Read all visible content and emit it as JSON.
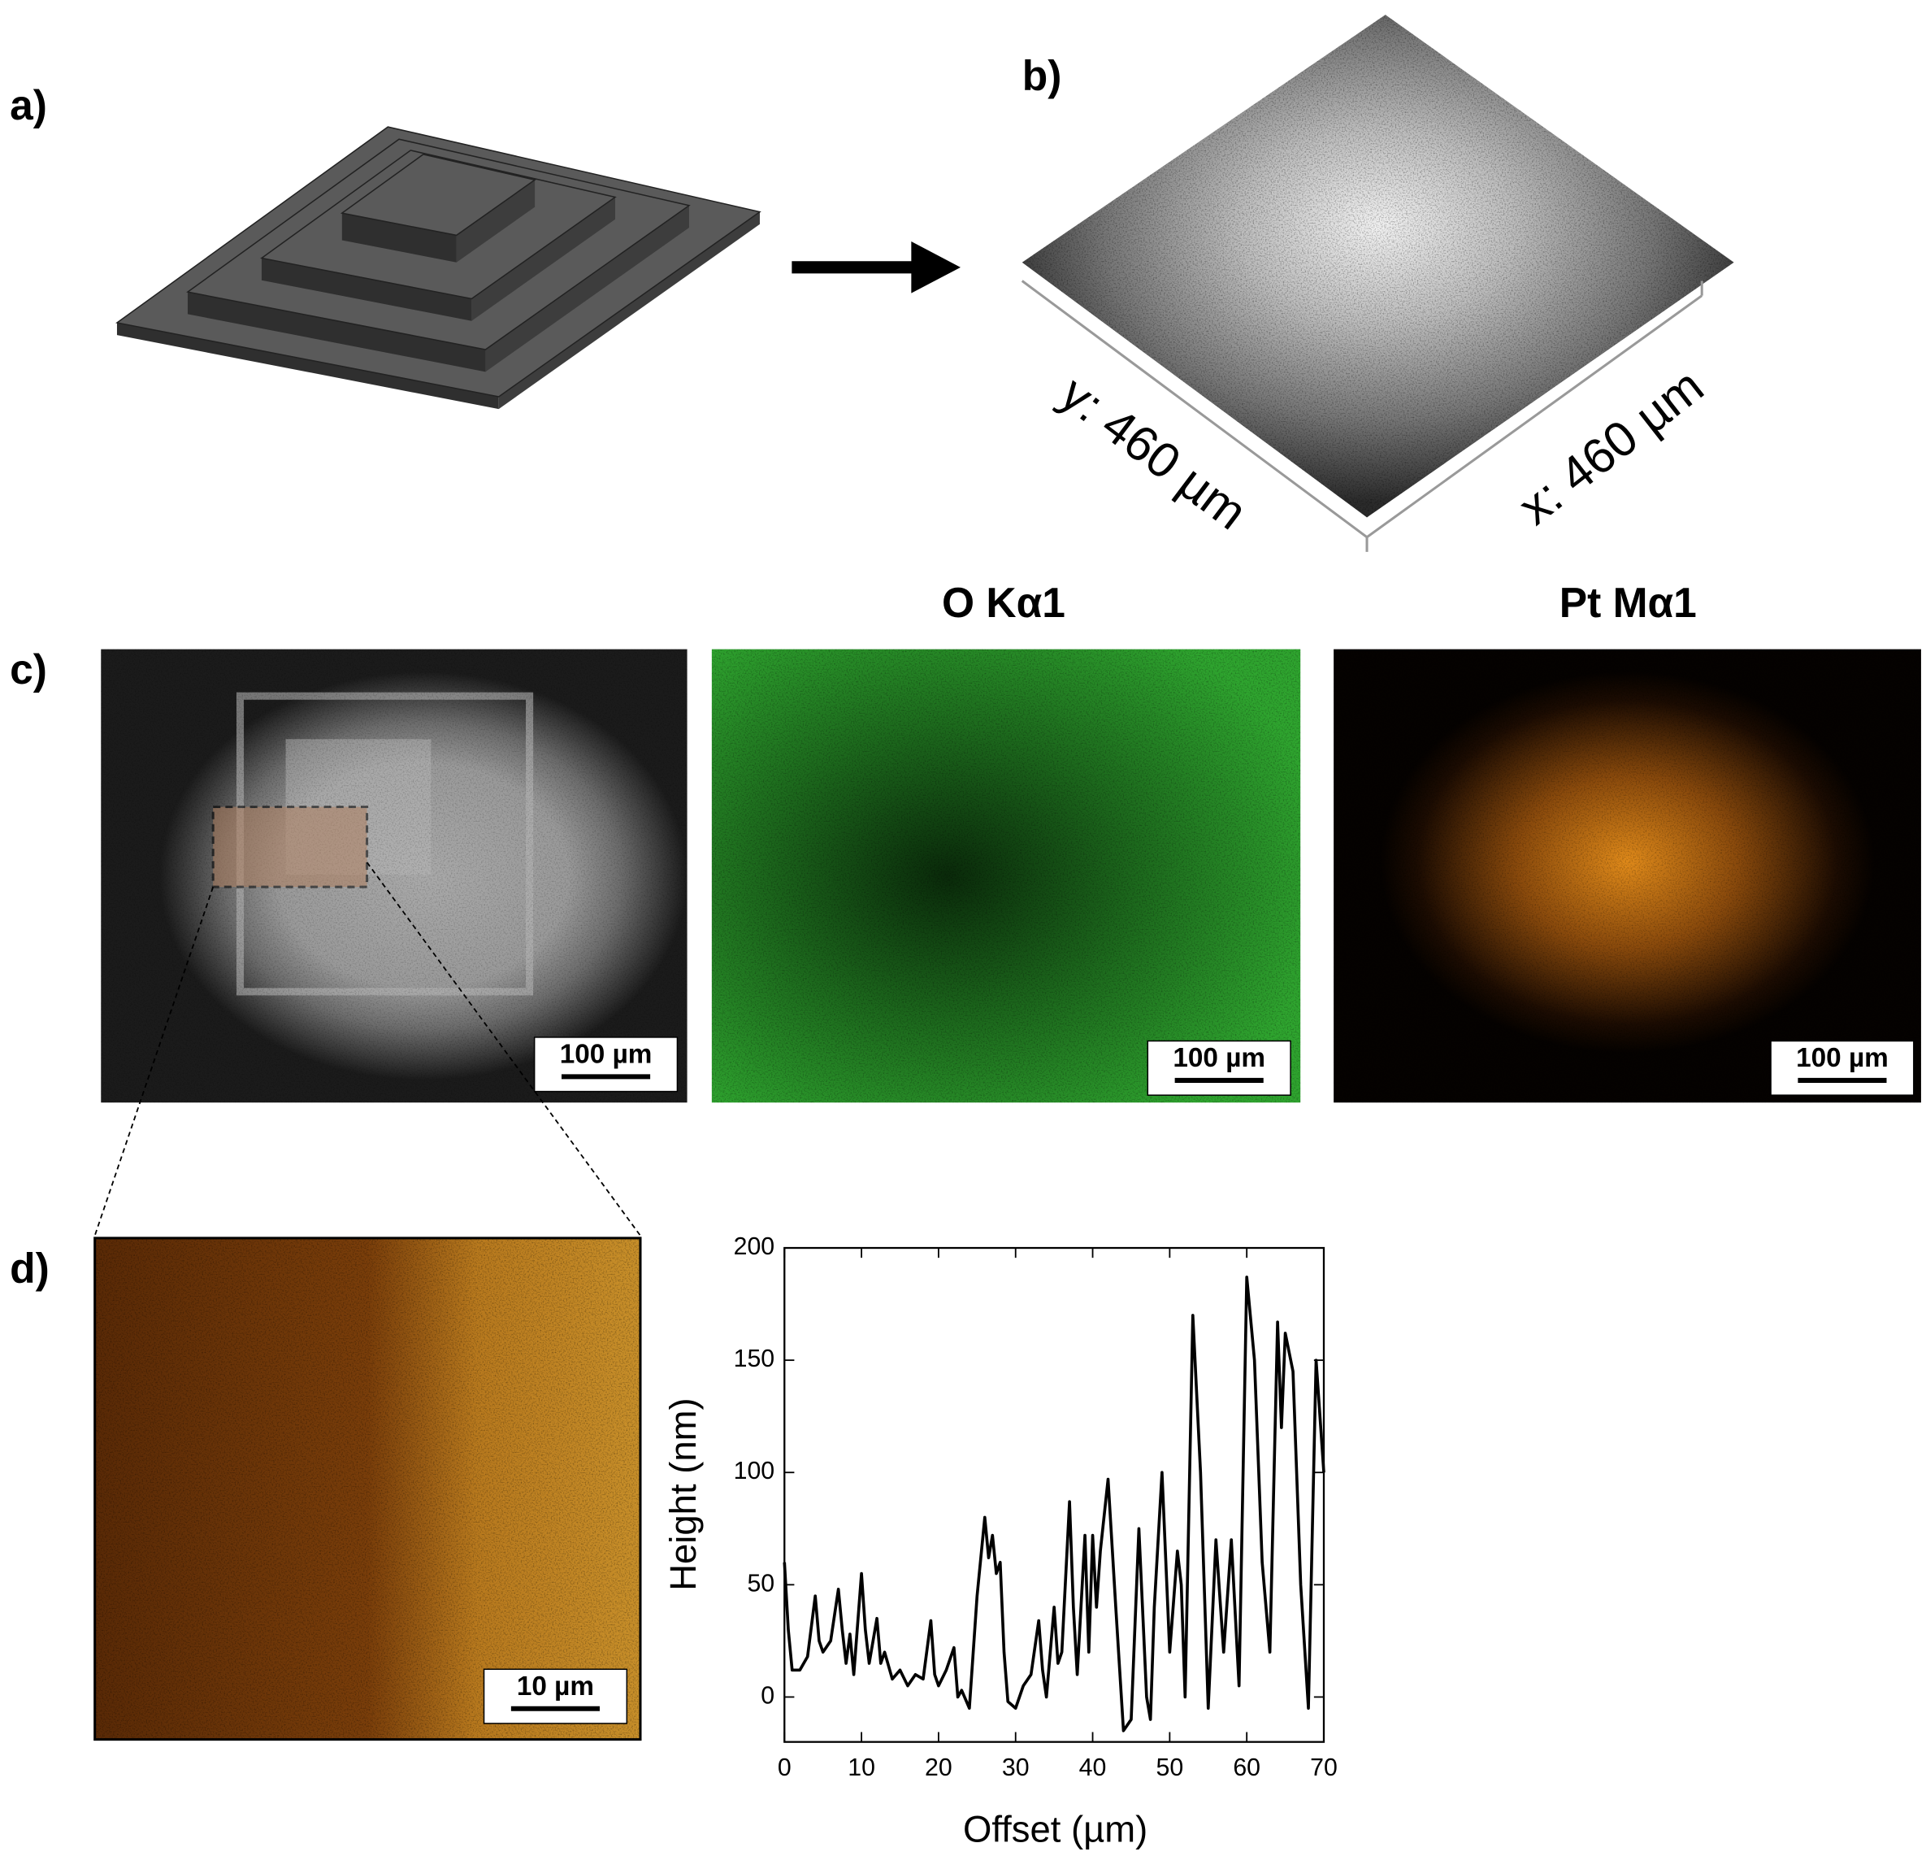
{
  "figure": {
    "labels": [
      "a)",
      "b)",
      "c)",
      "d)"
    ],
    "axis_b": [
      "y: 460 µm",
      "x: 460 µm"
    ],
    "map_titles": [
      "O Kα1",
      "Pt Mα1"
    ],
    "scale_bars": [
      "100 µm",
      "100 µm",
      "100 µm",
      "10 µm"
    ]
  },
  "chart_data": {
    "type": "line",
    "xlabel": "Offset (µm)",
    "ylabel": "Height (nm)",
    "color": "#000000",
    "x": [
      0,
      0.5,
      1,
      2,
      3,
      4,
      4.5,
      5,
      6,
      7,
      7.5,
      8,
      8.5,
      9,
      10,
      10.5,
      11,
      12,
      12.5,
      13,
      14,
      15,
      16,
      17,
      18,
      19,
      19.5,
      20,
      21,
      22,
      22.5,
      23,
      24,
      25,
      26,
      26.5,
      27,
      27.5,
      28,
      28.5,
      29,
      30,
      31,
      32,
      33,
      33.5,
      34,
      35,
      35.5,
      36,
      37,
      37.5,
      38,
      39,
      39.5,
      40,
      40.5,
      41,
      42,
      43,
      44,
      45,
      46,
      47,
      47.5,
      48,
      49,
      50,
      51,
      51.5,
      52,
      53,
      54,
      55,
      56,
      57,
      58,
      59,
      60,
      61,
      62,
      63,
      64,
      64.5,
      65,
      66,
      67,
      68,
      69,
      70
    ],
    "values": [
      60,
      30,
      12,
      12,
      18,
      45,
      25,
      20,
      25,
      48,
      30,
      15,
      28,
      10,
      55,
      30,
      15,
      35,
      15,
      20,
      8,
      12,
      5,
      10,
      8,
      34,
      10,
      5,
      12,
      22,
      0,
      3,
      -5,
      45,
      80,
      62,
      72,
      55,
      60,
      20,
      -2,
      -5,
      5,
      10,
      34,
      12,
      0,
      40,
      15,
      20,
      87,
      40,
      10,
      72,
      20,
      72,
      40,
      65,
      97,
      40,
      -15,
      -10,
      75,
      0,
      -10,
      40,
      100,
      20,
      65,
      50,
      0,
      170,
      100,
      -5,
      70,
      20,
      70,
      5,
      187,
      150,
      60,
      20,
      167,
      120,
      162,
      145,
      50,
      -5,
      150,
      100
    ],
    "xlim": [
      0,
      70
    ],
    "ylim": [
      -20,
      200
    ],
    "xticks": [
      0,
      10,
      20,
      30,
      40,
      50,
      60,
      70
    ],
    "yticks": [
      0,
      50,
      100,
      150,
      200
    ]
  }
}
